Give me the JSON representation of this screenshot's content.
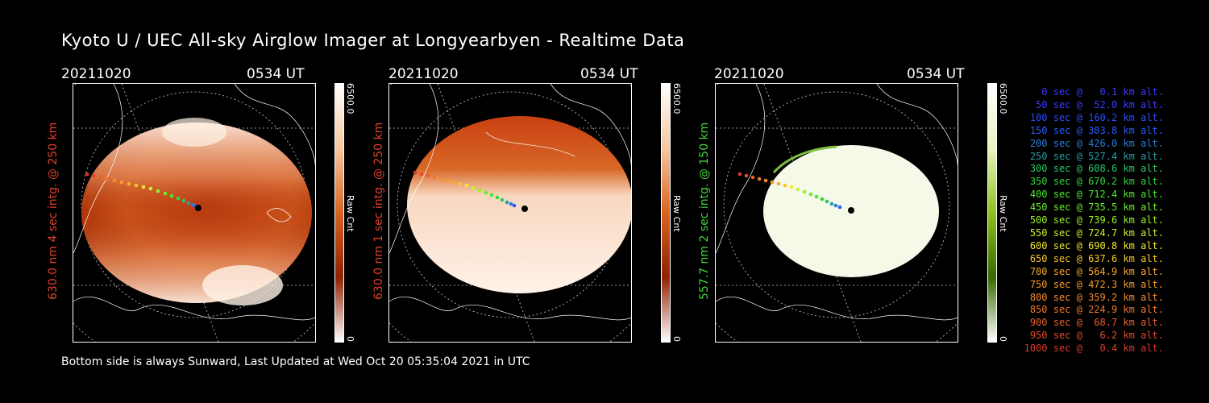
{
  "title": "Kyoto U / UEC All-sky Airglow Imager at Longyearbyen - Realtime Data",
  "footer": "Bottom side is always Sunward, Last Updated at Wed Oct 20 05:35:04 2021 in UTC",
  "panels": [
    {
      "date": "20211020",
      "time": "0534 UT",
      "ylabel": "630.0 nm 4 sec intg. @ 250 km",
      "ylabel_color": "#e0402a",
      "cbar_max": "6500.0",
      "cbar_min": "0",
      "cbar_unit": "Raw Cnt",
      "colormap": "orange"
    },
    {
      "date": "20211020",
      "time": "0534 UT",
      "ylabel": "630.0 nm 1 sec intg. @ 250 km",
      "ylabel_color": "#e0402a",
      "cbar_max": "6500.0",
      "cbar_min": "0",
      "cbar_unit": "Raw Cnt",
      "colormap": "orange"
    },
    {
      "date": "20211020",
      "time": "0534 UT",
      "ylabel": "557.7 nm 2 sec intg. @ 150 km",
      "ylabel_color": "#44d23a",
      "cbar_max": "6500.0",
      "cbar_min": "0",
      "cbar_unit": "Raw Cnt",
      "colormap": "green"
    }
  ],
  "legend": [
    {
      "text": "0 sec @   0.1 km alt.",
      "color": "#3a3aff"
    },
    {
      "text": "50 sec @  52.0 km alt.",
      "color": "#3a3aff"
    },
    {
      "text": "100 sec @ 160.2 km alt.",
      "color": "#2a4cff"
    },
    {
      "text": "150 sec @ 303.8 km alt.",
      "color": "#2a5cff"
    },
    {
      "text": "200 sec @ 426.0 km alt.",
      "color": "#2a7cd8"
    },
    {
      "text": "250 sec @ 527.4 km alt.",
      "color": "#2a9ca8"
    },
    {
      "text": "300 sec @ 608.6 km alt.",
      "color": "#2ac86a"
    },
    {
      "text": "350 sec @ 670.2 km alt.",
      "color": "#32d83a"
    },
    {
      "text": "400 sec @ 712.4 km alt.",
      "color": "#4ae82a"
    },
    {
      "text": "450 sec @ 735.5 km alt.",
      "color": "#6af02a"
    },
    {
      "text": "500 sec @ 739.6 km alt.",
      "color": "#9af02a"
    },
    {
      "text": "550 sec @ 724.7 km alt.",
      "color": "#c8f02a"
    },
    {
      "text": "600 sec @ 690.8 km alt.",
      "color": "#f0e82a"
    },
    {
      "text": "650 sec @ 637.6 km alt.",
      "color": "#f8c82a"
    },
    {
      "text": "700 sec @ 564.9 km alt.",
      "color": "#f8aa2a"
    },
    {
      "text": "750 sec @ 472.3 km alt.",
      "color": "#f89a2a"
    },
    {
      "text": "800 sec @ 359.2 km alt.",
      "color": "#f88a2a"
    },
    {
      "text": "850 sec @ 224.9 km alt.",
      "color": "#f0782a"
    },
    {
      "text": "900 sec @  68.7 km alt.",
      "color": "#e8602a"
    },
    {
      "text": "950 sec @   6.2 km alt.",
      "color": "#e04a2a"
    },
    {
      "text": "1000 sec @   0.4 km alt.",
      "color": "#d83a2a"
    }
  ]
}
